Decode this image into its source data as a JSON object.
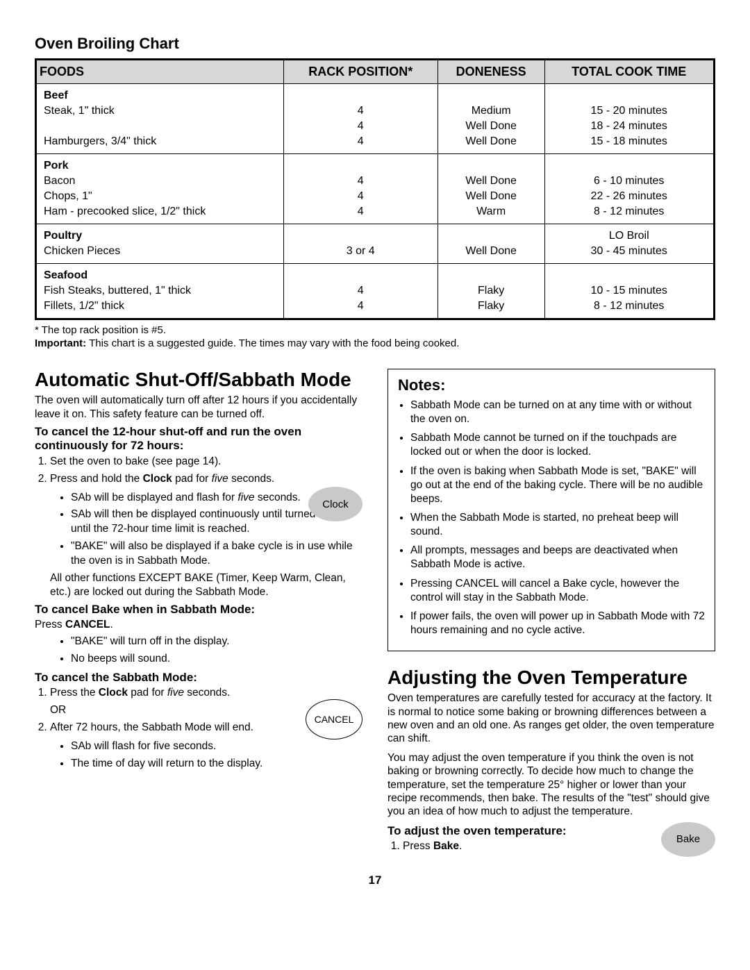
{
  "chart": {
    "title": "Oven Broiling Chart",
    "columns": [
      "FOODS",
      "RACK POSITION*",
      "DONENESS",
      "TOTAL COOK TIME"
    ],
    "sections": [
      {
        "category": "Beef",
        "rows": [
          {
            "food": "Steak, 1\" thick",
            "rack": "4",
            "done": "Medium",
            "time": "15 - 20 minutes"
          },
          {
            "food": "",
            "rack": "4",
            "done": "Well Done",
            "time": "18 - 24 minutes"
          },
          {
            "food": "Hamburgers, 3/4\" thick",
            "rack": "4",
            "done": "Well Done",
            "time": "15 - 18 minutes"
          }
        ]
      },
      {
        "category": "Pork",
        "rows": [
          {
            "food": "Bacon",
            "rack": "4",
            "done": "Well Done",
            "time": "6 - 10 minutes"
          },
          {
            "food": "Chops, 1\"",
            "rack": "4",
            "done": "Well Done",
            "time": "22 - 26 minutes"
          },
          {
            "food": "Ham  - precooked slice, 1/2\" thick",
            "rack": "4",
            "done": "Warm",
            "time": "8 - 12 minutes"
          }
        ]
      },
      {
        "category": "Poultry",
        "rows": [
          {
            "food": "",
            "rack": "",
            "done": "",
            "time": "LO Broil"
          },
          {
            "food": "Chicken Pieces",
            "rack": "3 or 4",
            "done": "Well Done",
            "time": "30 - 45 minutes"
          }
        ],
        "merged_first_row": true
      },
      {
        "category": "Seafood",
        "rows": [
          {
            "food": "Fish Steaks, buttered, 1\" thick",
            "rack": "4",
            "done": "Flaky",
            "time": "10 - 15 minutes"
          },
          {
            "food": "Fillets, 1/2\" thick",
            "rack": "4",
            "done": "Flaky",
            "time": "8 - 12 minutes"
          }
        ]
      }
    ],
    "footnote": "* The top rack position is #5.",
    "important_label": "Important:",
    "important_text": "  This chart is a suggested guide. The times may vary with the food being cooked."
  },
  "left": {
    "h2": "Automatic Shut-Off/Sabbath Mode",
    "intro": "The oven will automatically turn off after 12 hours if you accidentally leave it on.  This safety feature can be turned off.",
    "sub1": "To cancel the 12-hour shut-off and run the oven continuously for 72 hours:",
    "step1": "Set the oven to bake (see page 14).",
    "step2a": "Press and hold the ",
    "step2b": "Clock",
    "step2c": " pad for ",
    "step2d": "five",
    "step2e": " seconds.",
    "bul1a": "SAb will be displayed and flash for ",
    "bul1b": "five",
    "bul1c": " seconds.",
    "bul2": "SAb will then be displayed continuously until turned off or until the 72-hour time limit is reached.",
    "bul3": "\"BAKE\" will also be displayed if a bake cycle is in use while the oven is in Sabbath Mode.",
    "note_after": "All other functions EXCEPT BAKE (Timer, Keep Warm, Clean, etc.) are locked out during the Sabbath Mode.",
    "sub2": "To cancel Bake when in Sabbath Mode:",
    "press_cancel_a": "Press ",
    "press_cancel_b": "CANCEL",
    "press_cancel_c": ".",
    "bul4": "\"BAKE\" will turn off in the display.",
    "bul5": "No beeps will sound.",
    "sub3": "To cancel the Sabbath Mode:",
    "cancel1a": "Press the ",
    "cancel1b": "Clock",
    "cancel1c": " pad for ",
    "cancel1d": "five",
    "cancel1e": " seconds.",
    "or": "OR",
    "cancel2": "After 72 hours, the Sabbath Mode will end.",
    "bul6": "SAb will flash for five seconds.",
    "bul7": "The time of day will return to the display.",
    "clock_btn": "Clock",
    "cancel_btn": "CANCEL"
  },
  "right": {
    "notes_title": "Notes:",
    "notes": [
      "Sabbath Mode can be turned on at any time with or without the oven on.",
      "Sabbath Mode cannot be turned on if the touchpads are locked out or when the door is locked.",
      "If the oven is baking when Sabbath Mode is set, \"BAKE\" will go out at the end of the baking cycle.  There will be no audible beeps.",
      "When the Sabbath Mode is started, no preheat beep will sound.",
      "All prompts, messages and beeps are deactivated when Sabbath Mode is active.",
      "Pressing CANCEL will cancel a Bake cycle, however the control will stay in the Sabbath Mode.",
      "If power fails, the oven will power up in Sabbath Mode with 72 hours remaining and no cycle active."
    ],
    "h2": "Adjusting the Oven Temperature",
    "p1": "Oven temperatures are carefully tested for accuracy at the factory.  It is normal to notice some baking or browning differences between a new oven and an old one.  As ranges get older, the oven temperature can shift.",
    "p2": "You may adjust the oven temperature if you think the oven is not baking or browning correctly.  To decide how much to change the temperature, set the temperature 25° higher or lower than your recipe recommends, then bake.  The results of the \"test\" should give you an idea of how much to adjust the temperature.",
    "sub": "To adjust the oven temperature:",
    "step1a": "Press ",
    "step1b": "Bake",
    "step1c": ".",
    "bake_btn": "Bake"
  },
  "page_number": "17"
}
